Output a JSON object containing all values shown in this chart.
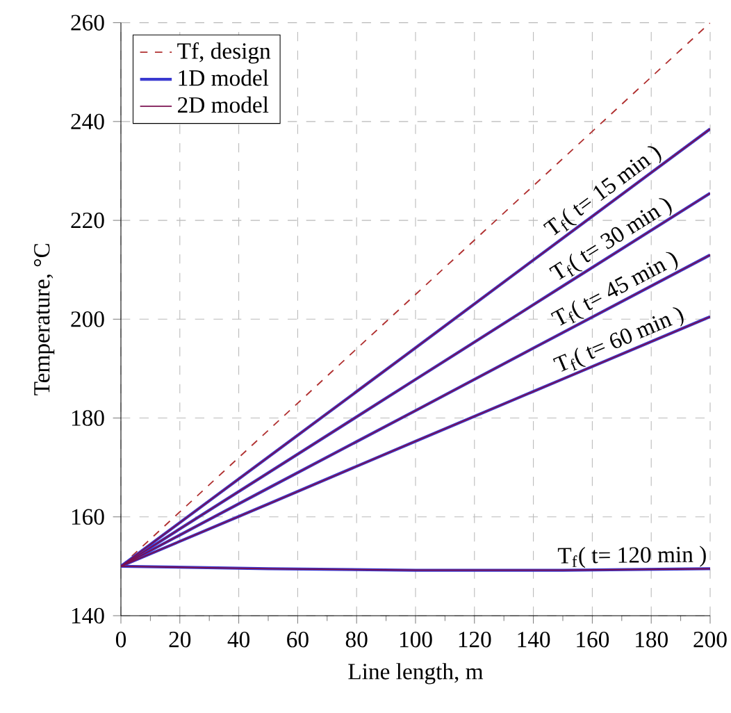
{
  "chart_data": {
    "type": "line",
    "xlabel": "Line length, m",
    "ylabel": "Temperature, °C",
    "x": [
      0,
      50,
      100,
      150,
      200
    ],
    "series": [
      {
        "name": "Tf, design",
        "color": "#b03030",
        "line_style": "dashed",
        "values": [
          150,
          177.5,
          205,
          232.5,
          260
        ]
      },
      {
        "name": "1D model",
        "color": "#3a3ad0",
        "values": [
          150,
          172.1,
          194.2,
          216.4,
          238.5
        ]
      },
      {
        "color": "#3a3ad0",
        "values": [
          150,
          168.9,
          187.8,
          206.7,
          225.5
        ]
      },
      {
        "color": "#3a3ad0",
        "values": [
          150,
          165.8,
          181.5,
          197.3,
          213
        ]
      },
      {
        "color": "#3a3ad0",
        "values": [
          150,
          162.6,
          175.3,
          187.9,
          200.5
        ]
      },
      {
        "color": "#3a3ad0",
        "values": [
          150,
          149.5,
          149.2,
          149.2,
          149.5
        ]
      },
      {
        "name": "2D model",
        "color": "#7a1050",
        "values": [
          150,
          172.1,
          194.2,
          216.4,
          238.5
        ]
      },
      {
        "color": "#7a1050",
        "values": [
          150,
          168.9,
          187.8,
          206.7,
          225.5
        ]
      },
      {
        "color": "#7a1050",
        "values": [
          150,
          165.8,
          181.5,
          197.3,
          213
        ]
      },
      {
        "color": "#7a1050",
        "values": [
          150,
          162.6,
          175.3,
          187.9,
          200.5
        ]
      },
      {
        "color": "#7a1050",
        "values": [
          150,
          149.5,
          149.2,
          149.2,
          149.5
        ]
      }
    ],
    "annotations": [
      {
        "text": "T$_{f}$( t= 15 min )",
        "x": 166.5,
        "y": 223.7
      },
      {
        "text": "T$_{f}$( t= 30 min )",
        "x": 169,
        "y": 213.8
      },
      {
        "text": "T$_{f}$( t= 45 min )",
        "x": 170,
        "y": 203.6
      },
      {
        "text": "T$_{f}$( t= 60 min )",
        "x": 171,
        "y": 193.2
      },
      {
        "text": "T$_{f}$( t= 120 min )",
        "x": 173.6,
        "y": 149.3
      }
    ],
    "xlim": [
      0,
      200
    ],
    "xticks": [
      0,
      20,
      40,
      60,
      80,
      100,
      120,
      140,
      160,
      180,
      200
    ],
    "ylim": [
      140,
      260
    ],
    "yticks": [
      140,
      160,
      180,
      200,
      220,
      240,
      260
    ],
    "grid": true,
    "legend": "top left",
    "marker": "none",
    "line_style": "solid"
  }
}
